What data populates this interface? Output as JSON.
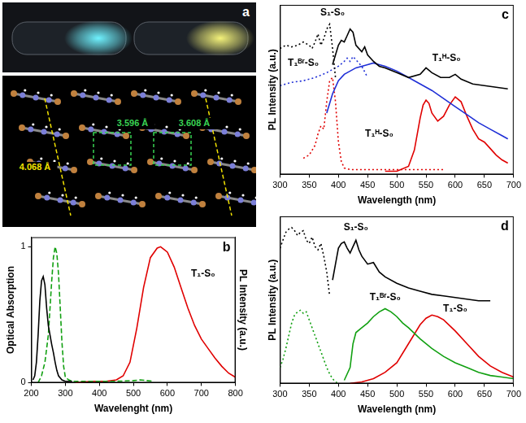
{
  "image_panel": {
    "panel": "a",
    "distances": [
      {
        "text": "3.596 Å",
        "color": "#39d353"
      },
      {
        "text": "3.608 Å",
        "color": "#39d353"
      },
      {
        "text": "4.068 Å",
        "color": "#f2e200"
      }
    ]
  },
  "chart_data": [
    {
      "panel": "b",
      "type": "line",
      "xlabel": "Wavelenght (nm)",
      "ylabel": "Optical Absorption",
      "y2label": "PL Intensity (a.u.)",
      "xlim": [
        200,
        800
      ],
      "xticks": [
        200,
        300,
        400,
        500,
        600,
        700,
        800
      ],
      "ylim": [
        0,
        1.07
      ],
      "yticks": [
        0,
        1
      ],
      "y2lim": [
        0,
        1.07
      ],
      "grid": false,
      "series": [
        {
          "color": "#000000",
          "line_style": "solid",
          "axis": "y",
          "x": [
            205,
            210,
            215,
            220,
            225,
            230,
            235,
            240,
            245,
            250,
            255,
            260,
            265,
            270,
            275,
            280,
            290,
            300,
            320
          ],
          "values": [
            0.02,
            0.05,
            0.15,
            0.35,
            0.6,
            0.75,
            0.78,
            0.72,
            0.55,
            0.42,
            0.35,
            0.28,
            0.22,
            0.15,
            0.09,
            0.05,
            0.02,
            0.01,
            0.01
          ]
        },
        {
          "color": "#11a011",
          "line_style": "dashed",
          "axis": "y2",
          "x": [
            220,
            230,
            240,
            250,
            255,
            260,
            265,
            270,
            275,
            280,
            285,
            290,
            295,
            300,
            310,
            320,
            350,
            400,
            450,
            500,
            520,
            540,
            560
          ],
          "values": [
            0,
            0.05,
            0.15,
            0.35,
            0.55,
            0.75,
            0.92,
            1.0,
            0.95,
            0.8,
            0.55,
            0.3,
            0.12,
            0.04,
            0.02,
            0.01,
            0.01,
            0.01,
            0.01,
            0.015,
            0.02,
            0.015,
            0.01
          ]
        },
        {
          "color": "#e00000",
          "line_style": "solid",
          "axis": "y2",
          "x": [
            330,
            380,
            420,
            450,
            470,
            490,
            510,
            530,
            550,
            570,
            580,
            590,
            600,
            620,
            640,
            660,
            680,
            700,
            720,
            740,
            760,
            780,
            800
          ],
          "values": [
            0,
            0.01,
            0.01,
            0.02,
            0.05,
            0.15,
            0.4,
            0.7,
            0.92,
            0.99,
            1.0,
            0.98,
            0.96,
            0.85,
            0.7,
            0.55,
            0.42,
            0.32,
            0.25,
            0.18,
            0.12,
            0.07,
            0.04
          ]
        }
      ],
      "annotations": [
        {
          "text": "T₁-S₀",
          "x": 705,
          "y": 0.8,
          "axis": "y2"
        }
      ]
    },
    {
      "panel": "c",
      "type": "line",
      "xlabel": "Wavelength (nm)",
      "ylabel": "PL Intensity (a.u.)",
      "xlim": [
        300,
        700
      ],
      "xticks": [
        300,
        350,
        400,
        450,
        500,
        550,
        600,
        650,
        700
      ],
      "ylim": [
        0,
        1.05
      ],
      "tick_labels": "x",
      "grid": false,
      "series": [
        {
          "color": "#000000",
          "line_style": "dotted",
          "x": [
            300,
            310,
            320,
            330,
            340,
            350,
            355,
            360,
            365,
            370,
            375,
            380,
            385,
            390,
            395
          ],
          "values": [
            0.78,
            0.8,
            0.79,
            0.8,
            0.82,
            0.8,
            0.78,
            0.82,
            0.87,
            0.8,
            0.84,
            0.9,
            0.93,
            0.78,
            0.6
          ]
        },
        {
          "color": "#000000",
          "line_style": "solid",
          "x": [
            390,
            395,
            400,
            405,
            410,
            415,
            420,
            425,
            430,
            440,
            445,
            450,
            460,
            470,
            480,
            500,
            520,
            540,
            550,
            560,
            575,
            590,
            600,
            610,
            630,
            650,
            670,
            690
          ],
          "values": [
            0.68,
            0.74,
            0.8,
            0.83,
            0.82,
            0.86,
            0.9,
            0.88,
            0.8,
            0.76,
            0.79,
            0.74,
            0.7,
            0.67,
            0.66,
            0.63,
            0.6,
            0.62,
            0.66,
            0.63,
            0.6,
            0.6,
            0.62,
            0.59,
            0.56,
            0.55,
            0.54,
            0.53
          ]
        },
        {
          "color": "#1f2fd6",
          "line_style": "dotted",
          "x": [
            300,
            320,
            340,
            360,
            380,
            390,
            400,
            410,
            415,
            420,
            425,
            430,
            440,
            450
          ],
          "values": [
            0.55,
            0.57,
            0.58,
            0.6,
            0.63,
            0.65,
            0.67,
            0.7,
            0.72,
            0.7,
            0.73,
            0.71,
            0.67,
            0.6
          ]
        },
        {
          "color": "#1f2fd6",
          "line_style": "solid",
          "x": [
            380,
            390,
            400,
            410,
            420,
            430,
            440,
            450,
            460,
            470,
            480,
            500,
            520,
            540,
            560,
            580,
            600,
            620,
            640,
            660,
            680,
            690
          ],
          "values": [
            0.38,
            0.5,
            0.58,
            0.62,
            0.64,
            0.66,
            0.67,
            0.68,
            0.69,
            0.68,
            0.67,
            0.64,
            0.6,
            0.56,
            0.52,
            0.47,
            0.42,
            0.37,
            0.32,
            0.28,
            0.24,
            0.22
          ]
        },
        {
          "color": "#e00000",
          "line_style": "dotted",
          "x": [
            340,
            350,
            360,
            365,
            370,
            375,
            380,
            385,
            390,
            395,
            400,
            405,
            410,
            420,
            450,
            500,
            550,
            580
          ],
          "values": [
            0.1,
            0.12,
            0.18,
            0.25,
            0.3,
            0.28,
            0.45,
            0.58,
            0.6,
            0.45,
            0.2,
            0.08,
            0.04,
            0.03,
            0.03,
            0.03,
            0.03,
            0.03
          ]
        },
        {
          "color": "#e00000",
          "line_style": "solid",
          "x": [
            480,
            500,
            520,
            530,
            540,
            545,
            550,
            555,
            560,
            570,
            580,
            590,
            600,
            610,
            620,
            630,
            640,
            650,
            660,
            670,
            680,
            690
          ],
          "values": [
            0.02,
            0.02,
            0.05,
            0.15,
            0.35,
            0.43,
            0.46,
            0.44,
            0.38,
            0.33,
            0.36,
            0.43,
            0.48,
            0.45,
            0.36,
            0.28,
            0.22,
            0.2,
            0.16,
            0.12,
            0.09,
            0.07
          ]
        }
      ],
      "annotations": [
        {
          "text": "S₁-S₀",
          "x": 390,
          "y": 1.0
        },
        {
          "text": "T₁ᴮʳ-S₀",
          "x": 340,
          "y": 0.69
        },
        {
          "text": "T₁ᴴ-S₀",
          "x": 585,
          "y": 0.72
        },
        {
          "text": "T₁ᴴ-S₀",
          "x": 470,
          "y": 0.25
        }
      ]
    },
    {
      "panel": "d",
      "type": "line",
      "xlabel": "Wavelength (nm)",
      "ylabel": "PL Intensity (a.u.)",
      "xlim": [
        300,
        700
      ],
      "xticks": [
        300,
        350,
        400,
        450,
        500,
        550,
        600,
        650,
        700
      ],
      "ylim": [
        0,
        1.05
      ],
      "tick_labels": "x",
      "grid": false,
      "series": [
        {
          "color": "#000000",
          "line_style": "dotted",
          "x": [
            300,
            305,
            310,
            315,
            320,
            325,
            330,
            335,
            340,
            345,
            350,
            355,
            360,
            365,
            370,
            375,
            380,
            385
          ],
          "values": [
            0.85,
            0.9,
            0.95,
            0.97,
            0.98,
            0.96,
            0.93,
            0.95,
            0.96,
            0.9,
            0.88,
            0.92,
            0.86,
            0.84,
            0.88,
            0.8,
            0.7,
            0.55
          ]
        },
        {
          "color": "#000000",
          "line_style": "solid",
          "x": [
            390,
            395,
            400,
            405,
            410,
            415,
            420,
            425,
            430,
            435,
            440,
            450,
            460,
            470,
            480,
            500,
            520,
            540,
            560,
            580,
            600,
            620,
            640,
            660
          ],
          "values": [
            0.65,
            0.75,
            0.85,
            0.88,
            0.89,
            0.85,
            0.82,
            0.86,
            0.9,
            0.84,
            0.8,
            0.75,
            0.76,
            0.7,
            0.67,
            0.63,
            0.6,
            0.58,
            0.56,
            0.55,
            0.54,
            0.53,
            0.52,
            0.52
          ]
        },
        {
          "color": "#11a011",
          "line_style": "dotted",
          "x": [
            300,
            305,
            310,
            315,
            320,
            325,
            330,
            335,
            340,
            345,
            350,
            355,
            360,
            365,
            370,
            375,
            380,
            385,
            390,
            395,
            400
          ],
          "values": [
            0.1,
            0.15,
            0.22,
            0.3,
            0.38,
            0.43,
            0.45,
            0.46,
            0.44,
            0.45,
            0.4,
            0.35,
            0.3,
            0.25,
            0.2,
            0.15,
            0.1,
            0.06,
            0.03,
            0.01,
            0
          ]
        },
        {
          "color": "#11a011",
          "line_style": "solid",
          "x": [
            410,
            420,
            425,
            430,
            440,
            450,
            460,
            470,
            480,
            490,
            500,
            510,
            520,
            540,
            560,
            580,
            600,
            620,
            640,
            660,
            680,
            700
          ],
          "values": [
            0.02,
            0.1,
            0.25,
            0.32,
            0.35,
            0.38,
            0.42,
            0.45,
            0.47,
            0.45,
            0.42,
            0.38,
            0.35,
            0.28,
            0.22,
            0.17,
            0.13,
            0.1,
            0.07,
            0.05,
            0.04,
            0.03
          ]
        },
        {
          "color": "#e00000",
          "line_style": "solid",
          "x": [
            420,
            440,
            460,
            480,
            500,
            520,
            540,
            550,
            560,
            570,
            580,
            600,
            620,
            640,
            660,
            680,
            700
          ],
          "values": [
            0,
            0.01,
            0.03,
            0.07,
            0.13,
            0.25,
            0.37,
            0.41,
            0.43,
            0.42,
            0.4,
            0.33,
            0.25,
            0.17,
            0.11,
            0.07,
            0.04
          ]
        }
      ],
      "annotations": [
        {
          "text": "S₁-S₀",
          "x": 430,
          "y": 0.98
        },
        {
          "text": "T₁ᴮʳ-S₀",
          "x": 480,
          "y": 0.54
        },
        {
          "text": "T₁-S₀",
          "x": 600,
          "y": 0.47
        }
      ]
    }
  ]
}
